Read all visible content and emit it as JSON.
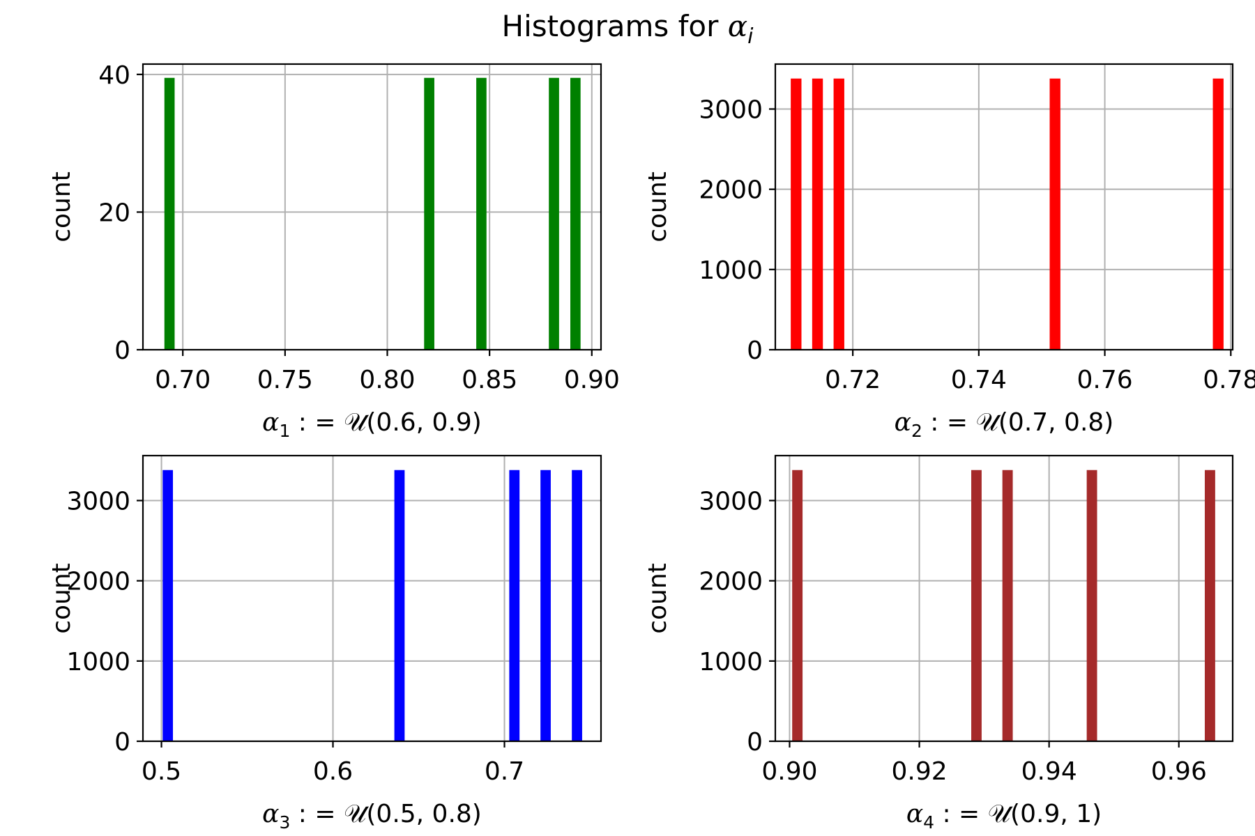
{
  "figure": {
    "title_prefix": "Histograms for ",
    "title_symbol": "α",
    "title_subscript": "i"
  },
  "chart_data": [
    {
      "type": "bar",
      "xlabel": {
        "symbol": "α",
        "index": "1",
        "rest": " : = 𝒰(0.6, 0.9)"
      },
      "ylabel": "count",
      "color": "#008000",
      "xlim": [
        0.6805,
        0.9045
      ],
      "ylim": [
        0,
        41.5
      ],
      "xticks": [
        0.7,
        0.75,
        0.8,
        0.85,
        0.9
      ],
      "xtick_labels": [
        "0.70",
        "0.75",
        "0.80",
        "0.85",
        "0.90"
      ],
      "yticks": [
        0,
        20,
        40
      ],
      "ytick_labels": [
        "0",
        "20",
        "40"
      ],
      "bar_width": 0.005,
      "bars": [
        {
          "x": 0.6935,
          "count": 39.5
        },
        {
          "x": 0.8205,
          "count": 39.5
        },
        {
          "x": 0.846,
          "count": 39.5
        },
        {
          "x": 0.8815,
          "count": 39.5
        },
        {
          "x": 0.892,
          "count": 39.5
        }
      ],
      "grid": true
    },
    {
      "type": "bar",
      "xlabel": {
        "symbol": "α",
        "index": "2",
        "rest": " : = 𝒰(0.7, 0.8)"
      },
      "ylabel": "count",
      "color": "#ff0000",
      "xlim": [
        0.7077,
        0.7803
      ],
      "ylim": [
        0,
        3560
      ],
      "xticks": [
        0.72,
        0.74,
        0.76,
        0.78
      ],
      "xtick_labels": [
        "0.72",
        "0.74",
        "0.76",
        "0.78"
      ],
      "yticks": [
        0,
        1000,
        2000,
        3000
      ],
      "ytick_labels": [
        "0",
        "1000",
        "2000",
        "3000"
      ],
      "bar_width": 0.0017,
      "bars": [
        {
          "x": 0.711,
          "count": 3380
        },
        {
          "x": 0.7144,
          "count": 3380
        },
        {
          "x": 0.7178,
          "count": 3380
        },
        {
          "x": 0.7521,
          "count": 3380
        },
        {
          "x": 0.778,
          "count": 3380
        }
      ],
      "grid": true
    },
    {
      "type": "bar",
      "xlabel": {
        "symbol": "α",
        "index": "3",
        "rest": " : = 𝒰(0.5, 0.8)"
      },
      "ylabel": "count",
      "color": "#0000ff",
      "xlim": [
        0.4892,
        0.7563
      ],
      "ylim": [
        0,
        3560
      ],
      "xticks": [
        0.5,
        0.6,
        0.7
      ],
      "xtick_labels": [
        "0.5",
        "0.6",
        "0.7"
      ],
      "yticks": [
        0,
        1000,
        2000,
        3000
      ],
      "ytick_labels": [
        "0",
        "1000",
        "2000",
        "3000"
      ],
      "bar_width": 0.006,
      "bars": [
        {
          "x": 0.5037,
          "count": 3380
        },
        {
          "x": 0.6388,
          "count": 3380
        },
        {
          "x": 0.7058,
          "count": 3380
        },
        {
          "x": 0.724,
          "count": 3380
        },
        {
          "x": 0.7423,
          "count": 3380
        }
      ],
      "grid": true
    },
    {
      "type": "bar",
      "xlabel": {
        "symbol": "α",
        "index": "4",
        "rest": " : = 𝒰(0.9, 1)"
      },
      "ylabel": "count",
      "color": "#a52a2a",
      "xlim": [
        0.8978,
        0.9683
      ],
      "ylim": [
        0,
        3560
      ],
      "xticks": [
        0.9,
        0.92,
        0.94,
        0.96
      ],
      "xtick_labels": [
        "0.90",
        "0.92",
        "0.94",
        "0.96"
      ],
      "yticks": [
        0,
        1000,
        2000,
        3000
      ],
      "ytick_labels": [
        "0",
        "1000",
        "2000",
        "3000"
      ],
      "bar_width": 0.0016,
      "bars": [
        {
          "x": 0.9012,
          "count": 3380
        },
        {
          "x": 0.9288,
          "count": 3380
        },
        {
          "x": 0.9336,
          "count": 3380
        },
        {
          "x": 0.9466,
          "count": 3380
        },
        {
          "x": 0.9648,
          "count": 3380
        }
      ],
      "grid": true
    }
  ]
}
